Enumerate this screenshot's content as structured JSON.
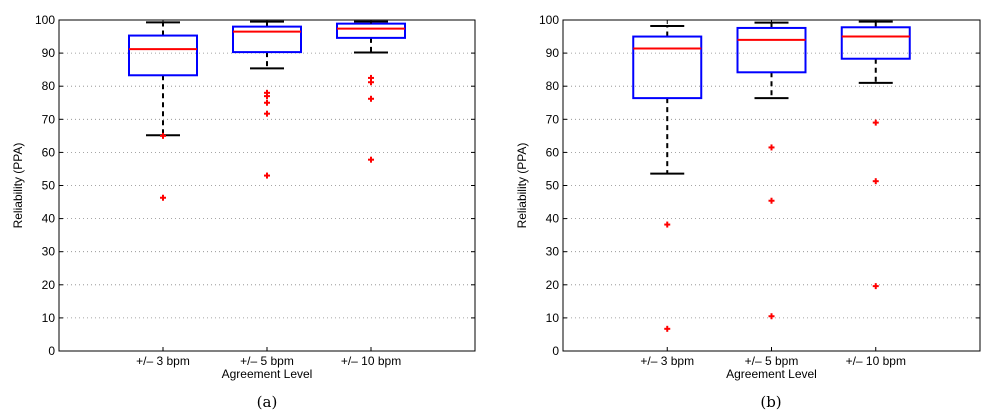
{
  "chart_data": [
    {
      "type": "boxplot",
      "caption": "(a)",
      "xlabel": "Agreement Level",
      "ylabel": "Reliability (PPA)",
      "categories": [
        "+/– 3 bpm",
        "+/– 5 bpm",
        "+/– 10 bpm"
      ],
      "ylim": [
        0,
        100
      ],
      "yticks": [
        0,
        10,
        20,
        30,
        40,
        50,
        60,
        70,
        80,
        90,
        100
      ],
      "grid": "y dotted",
      "boxes": [
        {
          "whisker_low": 65.2,
          "q1": 83.3,
          "median": 91.2,
          "q3": 95.3,
          "whisker_high": 99.3,
          "outliers": [
            65.0,
            46.3
          ]
        },
        {
          "whisker_low": 85.4,
          "q1": 90.3,
          "median": 96.5,
          "q3": 98.0,
          "whisker_high": 99.5,
          "outliers": [
            78.0,
            77.0,
            75.0,
            71.7,
            53.0
          ]
        },
        {
          "whisker_low": 90.2,
          "q1": 94.6,
          "median": 97.4,
          "q3": 98.9,
          "whisker_high": 99.5,
          "outliers": [
            82.5,
            81.2,
            76.2,
            57.8
          ]
        }
      ]
    },
    {
      "type": "boxplot",
      "caption": "(b)",
      "xlabel": "Agreement Level",
      "ylabel": "Reliability (PPA)",
      "categories": [
        "+/– 3 bpm",
        "+/– 5 bpm",
        "+/– 10 bpm"
      ],
      "ylim": [
        0,
        100
      ],
      "yticks": [
        0,
        10,
        20,
        30,
        40,
        50,
        60,
        70,
        80,
        90,
        100
      ],
      "grid": "y dotted",
      "boxes": [
        {
          "whisker_low": 53.6,
          "q1": 76.4,
          "median": 91.4,
          "q3": 95.0,
          "whisker_high": 98.2,
          "outliers": [
            38.2,
            6.7
          ]
        },
        {
          "whisker_low": 76.4,
          "q1": 84.2,
          "median": 94.0,
          "q3": 97.6,
          "whisker_high": 99.2,
          "outliers": [
            61.5,
            45.4,
            10.5
          ]
        },
        {
          "whisker_low": 81.0,
          "q1": 88.3,
          "median": 95.0,
          "q3": 97.8,
          "whisker_high": 99.5,
          "outliers": [
            69.0,
            51.3,
            19.6
          ]
        }
      ]
    }
  ],
  "colors": {
    "box": "#0000ff",
    "median": "#ff0000",
    "whisker": "#000000",
    "outlier": "#ff0000",
    "grid": "#888888"
  }
}
